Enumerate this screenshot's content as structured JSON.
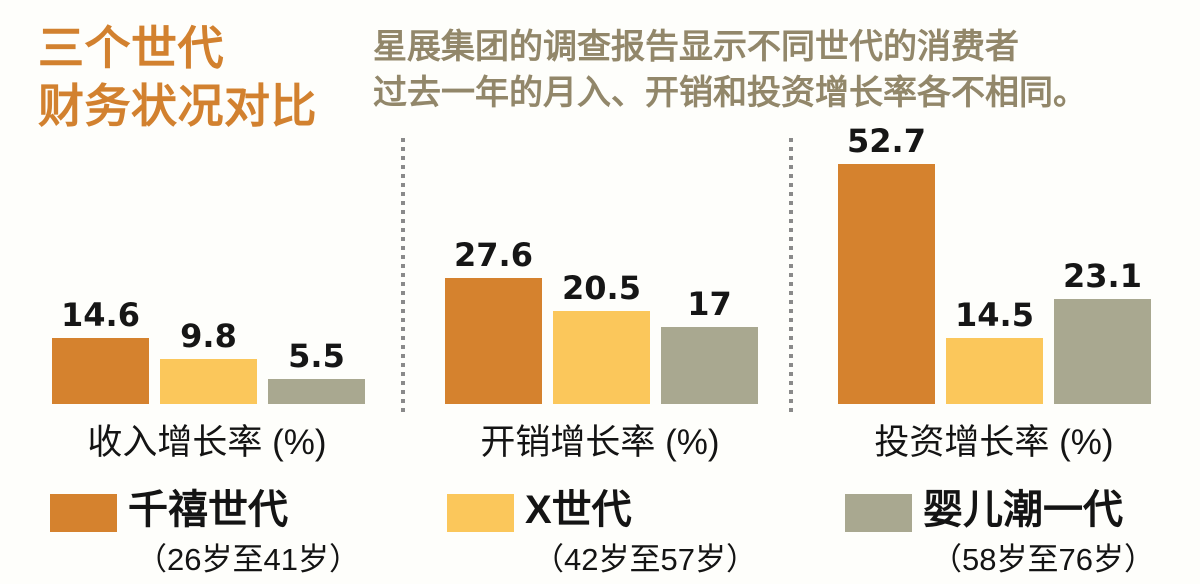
{
  "title": {
    "line1": "三个世代",
    "line2": "财务状况对比"
  },
  "subtitle": {
    "line1": "星展集团的调查报告显示不同世代的消费者",
    "line2": "过去一年的月入、开销和投资增长率各不相同。"
  },
  "colors": {
    "title_orange": "#D2812F",
    "subtitle_olive": "#92876A",
    "millennial_orange": "#D5822E",
    "genx_yellow": "#FBC75B",
    "boomer_gray": "#A9A890",
    "value_text": "#161616",
    "divider_gray": "#8A8A8A",
    "background": "#FEFEFB"
  },
  "chart_data": {
    "type": "bar",
    "unit": "%",
    "grid": false,
    "legend_position": "bottom",
    "ylim": [
      0,
      55
    ],
    "categories": [
      "收入增长率 (%)",
      "开销增长率 (%)",
      "投资增长率 (%)"
    ],
    "series": [
      {
        "name": "千禧世代",
        "age_range": "（26岁至41岁）",
        "color": "#D5822E",
        "values": [
          14.6,
          27.6,
          52.7
        ]
      },
      {
        "name": "X世代",
        "age_range": "（42岁至57岁）",
        "color": "#FBC75B",
        "values": [
          9.8,
          20.5,
          14.5
        ]
      },
      {
        "name": "婴儿潮一代",
        "age_range": "（58岁至76岁）",
        "color": "#A9A890",
        "values": [
          5.5,
          17,
          23.1
        ]
      }
    ],
    "value_labels": [
      [
        "14.6",
        "9.8",
        "5.5"
      ],
      [
        "27.6",
        "20.5",
        "17"
      ],
      [
        "52.7",
        "14.5",
        "23.1"
      ]
    ]
  },
  "legend": [
    {
      "name": "千禧世代",
      "age": "（26岁至41岁）"
    },
    {
      "name": "X世代",
      "age": "（42岁至57岁）"
    },
    {
      "name": "婴儿潮一代",
      "age": "（58岁至76岁）"
    }
  ]
}
